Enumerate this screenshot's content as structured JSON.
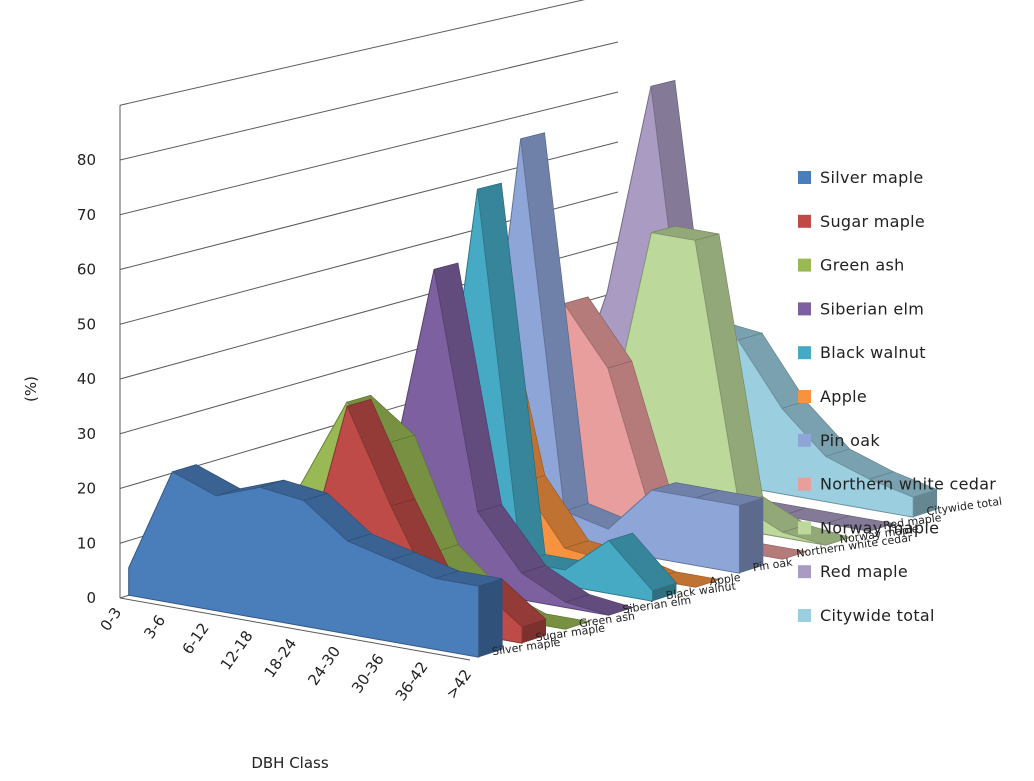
{
  "chart_data": {
    "type": "area",
    "projection": "3d",
    "ylabel": "(%)",
    "xlabel": "DBH Class",
    "ylim": [
      0,
      80
    ],
    "yticks": [
      0,
      10,
      20,
      30,
      40,
      50,
      60,
      70,
      80
    ],
    "grid": true,
    "legend_position": "right",
    "categories": [
      "0-3",
      "3-6",
      "6-12",
      "12-18",
      "18-24",
      "24-30",
      "30-36",
      "36-42",
      ">42"
    ],
    "series": [
      {
        "name": "Silver maple",
        "color": "#4a7ebb",
        "values": [
          5,
          24,
          21,
          24,
          23,
          17,
          15,
          13,
          13
        ]
      },
      {
        "name": "Sugar maple",
        "color": "#be4b48",
        "values": [
          0,
          2,
          3,
          7,
          38,
          21,
          6,
          9,
          3
        ]
      },
      {
        "name": "Green ash",
        "color": "#98b954",
        "values": [
          0,
          4,
          19,
          35,
          29,
          10,
          3,
          0,
          0
        ]
      },
      {
        "name": "Siberian elm",
        "color": "#7d60a0",
        "values": [
          0,
          2,
          8,
          19,
          59,
          15,
          5,
          1,
          0
        ]
      },
      {
        "name": "Black walnut",
        "color": "#46aac5",
        "values": [
          0,
          20,
          5,
          9,
          72,
          3,
          3,
          10,
          2
        ]
      },
      {
        "name": "Apple",
        "color": "#f69240",
        "values": [
          0,
          19,
          8,
          50,
          14,
          3,
          2,
          0,
          0
        ]
      },
      {
        "name": "Pin oak",
        "color": "#8ea5d8",
        "values": [
          0,
          6,
          6,
          76,
          6,
          4,
          13,
          13,
          13
        ]
      },
      {
        "name": "Northern white cedar",
        "color": "#e79e9d",
        "values": [
          0,
          10,
          13,
          42,
          31,
          4,
          0,
          0,
          0
        ]
      },
      {
        "name": "Norway maple",
        "color": "#bcd89a",
        "values": [
          0,
          1,
          6,
          15,
          55,
          55,
          5,
          1,
          0
        ]
      },
      {
        "name": "Red maple",
        "color": "#a99bc2",
        "values": [
          0,
          11,
          38,
          80,
          12,
          0,
          0,
          0,
          0
        ]
      },
      {
        "name": "Citywide total",
        "color": "#9bcfe0",
        "values": [
          0,
          2,
          14,
          30,
          29,
          17,
          9,
          6,
          4
        ]
      }
    ]
  }
}
